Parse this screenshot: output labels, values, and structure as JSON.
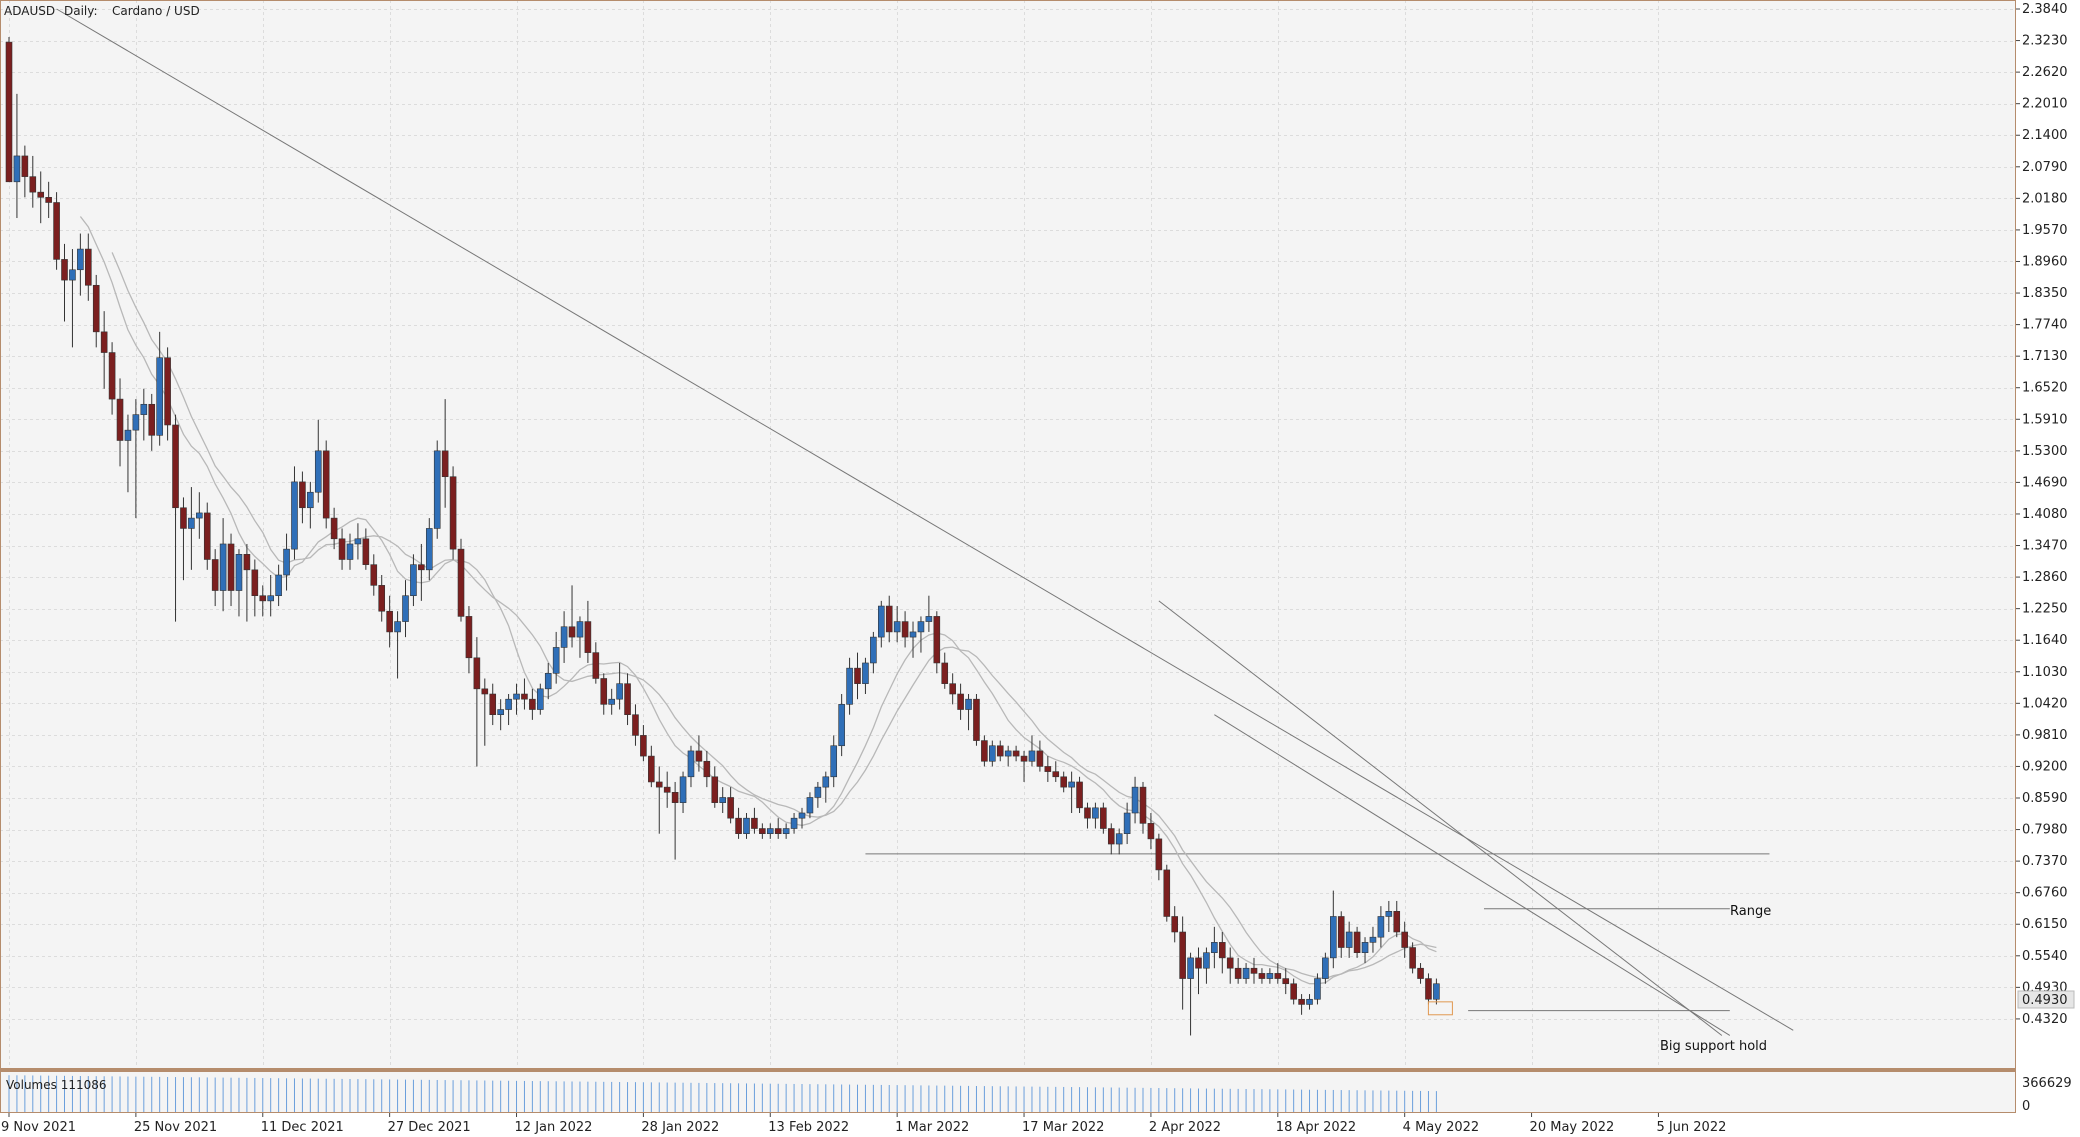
{
  "header": {
    "symbol": "ADAUSD",
    "timeframe": "Daily:",
    "description": "Cardano / USD"
  },
  "volume_panel": {
    "label": "Volumes 111086",
    "scale_top": "366629",
    "scale_bottom": "0"
  },
  "price_scale": {
    "labels": [
      "2.3840",
      "2.3230",
      "2.2620",
      "2.2010",
      "2.1400",
      "2.0790",
      "2.0180",
      "1.9570",
      "1.8960",
      "1.8350",
      "1.7740",
      "1.7130",
      "1.6520",
      "1.5910",
      "1.5300",
      "1.4690",
      "1.4080",
      "1.3470",
      "1.2860",
      "1.2250",
      "1.1640",
      "1.1030",
      "1.0420",
      "0.9810",
      "0.9200",
      "0.8590",
      "0.7980",
      "0.7370",
      "0.6760",
      "0.6150",
      "0.5540",
      "0.4930",
      "0.4320"
    ],
    "values": [
      2.384,
      2.323,
      2.262,
      2.201,
      2.14,
      2.079,
      2.018,
      1.957,
      1.896,
      1.835,
      1.774,
      1.713,
      1.652,
      1.591,
      1.53,
      1.469,
      1.408,
      1.347,
      1.286,
      1.225,
      1.164,
      1.103,
      1.042,
      0.981,
      0.92,
      0.859,
      0.798,
      0.737,
      0.676,
      0.615,
      0.554,
      0.493,
      0.432
    ],
    "current_price": "0.4930"
  },
  "time_axis": {
    "labels": [
      "9 Nov 2021",
      "25 Nov 2021",
      "11 Dec 2021",
      "27 Dec 2021",
      "12 Jan 2022",
      "28 Jan 2022",
      "13 Feb 2022",
      "1 Mar 2022",
      "17 Mar 2022",
      "2 Apr 2022",
      "18 Apr 2022",
      "4 May 2022",
      "20 May 2022",
      "5 Jun 2022"
    ]
  },
  "annotations": {
    "range_label": "Range",
    "support_label": "Big support hold"
  },
  "colors": {
    "bull": "#2f6fb8",
    "bear": "#7b1f1f",
    "ma": "#b8b8b8",
    "trendline": "#777777",
    "frame": "#b58c6c",
    "grid": "#dcdcdc",
    "volume": "#6b9fdc",
    "highlight": "#e09850"
  },
  "chart_data": {
    "type": "candlestick",
    "title": "ADAUSD, Daily: Cardano / USD",
    "ylim": [
      0.4,
      2.384
    ],
    "grid": true,
    "x_start": "9 Nov 2021",
    "x_step": "1 day",
    "ohlc": [
      [
        2.32,
        2.33,
        2.05,
        2.05
      ],
      [
        2.05,
        2.22,
        1.98,
        2.1
      ],
      [
        2.1,
        2.12,
        2.02,
        2.06
      ],
      [
        2.06,
        2.1,
        2.0,
        2.03
      ],
      [
        2.03,
        2.07,
        1.97,
        2.02
      ],
      [
        2.02,
        2.05,
        1.98,
        2.01
      ],
      [
        2.01,
        2.03,
        1.88,
        1.9
      ],
      [
        1.9,
        1.93,
        1.78,
        1.86
      ],
      [
        1.86,
        1.92,
        1.73,
        1.88
      ],
      [
        1.88,
        1.95,
        1.83,
        1.92
      ],
      [
        1.92,
        1.95,
        1.82,
        1.85
      ],
      [
        1.85,
        1.87,
        1.73,
        1.76
      ],
      [
        1.76,
        1.8,
        1.65,
        1.72
      ],
      [
        1.72,
        1.74,
        1.6,
        1.63
      ],
      [
        1.63,
        1.67,
        1.5,
        1.55
      ],
      [
        1.55,
        1.6,
        1.45,
        1.57
      ],
      [
        1.57,
        1.63,
        1.4,
        1.6
      ],
      [
        1.6,
        1.65,
        1.55,
        1.62
      ],
      [
        1.62,
        1.64,
        1.53,
        1.56
      ],
      [
        1.56,
        1.76,
        1.54,
        1.71
      ],
      [
        1.71,
        1.73,
        1.55,
        1.58
      ],
      [
        1.58,
        1.6,
        1.2,
        1.42
      ],
      [
        1.42,
        1.44,
        1.28,
        1.38
      ],
      [
        1.38,
        1.46,
        1.3,
        1.4
      ],
      [
        1.4,
        1.45,
        1.36,
        1.41
      ],
      [
        1.41,
        1.43,
        1.3,
        1.32
      ],
      [
        1.32,
        1.34,
        1.23,
        1.26
      ],
      [
        1.26,
        1.4,
        1.22,
        1.35
      ],
      [
        1.35,
        1.37,
        1.23,
        1.26
      ],
      [
        1.26,
        1.34,
        1.21,
        1.33
      ],
      [
        1.33,
        1.35,
        1.2,
        1.3
      ],
      [
        1.3,
        1.32,
        1.21,
        1.25
      ],
      [
        1.25,
        1.27,
        1.21,
        1.24
      ],
      [
        1.24,
        1.29,
        1.21,
        1.25
      ],
      [
        1.25,
        1.31,
        1.23,
        1.29
      ],
      [
        1.29,
        1.37,
        1.26,
        1.34
      ],
      [
        1.34,
        1.5,
        1.32,
        1.47
      ],
      [
        1.47,
        1.49,
        1.39,
        1.42
      ],
      [
        1.42,
        1.47,
        1.38,
        1.45
      ],
      [
        1.45,
        1.59,
        1.43,
        1.53
      ],
      [
        1.53,
        1.55,
        1.38,
        1.4
      ],
      [
        1.4,
        1.42,
        1.34,
        1.36
      ],
      [
        1.36,
        1.38,
        1.3,
        1.32
      ],
      [
        1.32,
        1.37,
        1.3,
        1.35
      ],
      [
        1.35,
        1.39,
        1.32,
        1.36
      ],
      [
        1.36,
        1.38,
        1.3,
        1.31
      ],
      [
        1.31,
        1.33,
        1.25,
        1.27
      ],
      [
        1.27,
        1.29,
        1.2,
        1.22
      ],
      [
        1.22,
        1.25,
        1.15,
        1.18
      ],
      [
        1.18,
        1.22,
        1.09,
        1.2
      ],
      [
        1.2,
        1.28,
        1.17,
        1.25
      ],
      [
        1.25,
        1.33,
        1.23,
        1.31
      ],
      [
        1.31,
        1.35,
        1.24,
        1.3
      ],
      [
        1.3,
        1.4,
        1.28,
        1.38
      ],
      [
        1.38,
        1.55,
        1.36,
        1.53
      ],
      [
        1.53,
        1.63,
        1.42,
        1.48
      ],
      [
        1.48,
        1.5,
        1.32,
        1.34
      ],
      [
        1.34,
        1.36,
        1.2,
        1.21
      ],
      [
        1.21,
        1.23,
        1.1,
        1.13
      ],
      [
        1.13,
        1.17,
        0.92,
        1.07
      ],
      [
        1.07,
        1.09,
        0.96,
        1.06
      ],
      [
        1.06,
        1.08,
        1.0,
        1.02
      ],
      [
        1.02,
        1.05,
        0.99,
        1.03
      ],
      [
        1.03,
        1.06,
        1.0,
        1.05
      ],
      [
        1.05,
        1.08,
        1.02,
        1.06
      ],
      [
        1.06,
        1.09,
        1.03,
        1.05
      ],
      [
        1.05,
        1.07,
        1.01,
        1.03
      ],
      [
        1.03,
        1.08,
        1.02,
        1.07
      ],
      [
        1.07,
        1.12,
        1.05,
        1.1
      ],
      [
        1.1,
        1.18,
        1.08,
        1.15
      ],
      [
        1.15,
        1.22,
        1.12,
        1.19
      ],
      [
        1.19,
        1.27,
        1.15,
        1.17
      ],
      [
        1.17,
        1.21,
        1.13,
        1.2
      ],
      [
        1.2,
        1.24,
        1.12,
        1.14
      ],
      [
        1.14,
        1.16,
        1.08,
        1.09
      ],
      [
        1.09,
        1.1,
        1.02,
        1.04
      ],
      [
        1.04,
        1.07,
        1.02,
        1.05
      ],
      [
        1.05,
        1.12,
        1.03,
        1.08
      ],
      [
        1.08,
        1.1,
        1.0,
        1.02
      ],
      [
        1.02,
        1.04,
        0.96,
        0.98
      ],
      [
        0.98,
        1.0,
        0.93,
        0.94
      ],
      [
        0.94,
        0.96,
        0.88,
        0.89
      ],
      [
        0.89,
        0.92,
        0.79,
        0.88
      ],
      [
        0.88,
        0.91,
        0.84,
        0.87
      ],
      [
        0.87,
        0.89,
        0.74,
        0.85
      ],
      [
        0.85,
        0.91,
        0.83,
        0.9
      ],
      [
        0.9,
        0.96,
        0.88,
        0.95
      ],
      [
        0.95,
        0.98,
        0.91,
        0.93
      ],
      [
        0.93,
        0.95,
        0.88,
        0.9
      ],
      [
        0.9,
        0.92,
        0.84,
        0.85
      ],
      [
        0.85,
        0.88,
        0.83,
        0.86
      ],
      [
        0.86,
        0.88,
        0.81,
        0.82
      ],
      [
        0.82,
        0.84,
        0.78,
        0.79
      ],
      [
        0.79,
        0.83,
        0.78,
        0.82
      ],
      [
        0.82,
        0.84,
        0.79,
        0.8
      ],
      [
        0.8,
        0.81,
        0.78,
        0.79
      ],
      [
        0.79,
        0.81,
        0.78,
        0.8
      ],
      [
        0.8,
        0.82,
        0.78,
        0.79
      ],
      [
        0.79,
        0.81,
        0.78,
        0.8
      ],
      [
        0.8,
        0.83,
        0.79,
        0.82
      ],
      [
        0.82,
        0.84,
        0.8,
        0.83
      ],
      [
        0.83,
        0.87,
        0.82,
        0.86
      ],
      [
        0.86,
        0.89,
        0.84,
        0.88
      ],
      [
        0.88,
        0.91,
        0.85,
        0.9
      ],
      [
        0.9,
        0.98,
        0.88,
        0.96
      ],
      [
        0.96,
        1.06,
        0.94,
        1.04
      ],
      [
        1.04,
        1.13,
        1.02,
        1.11
      ],
      [
        1.11,
        1.14,
        1.05,
        1.08
      ],
      [
        1.08,
        1.13,
        1.06,
        1.12
      ],
      [
        1.12,
        1.18,
        1.1,
        1.17
      ],
      [
        1.17,
        1.24,
        1.15,
        1.23
      ],
      [
        1.23,
        1.25,
        1.16,
        1.18
      ],
      [
        1.18,
        1.23,
        1.16,
        1.2
      ],
      [
        1.2,
        1.22,
        1.15,
        1.17
      ],
      [
        1.17,
        1.2,
        1.13,
        1.18
      ],
      [
        1.18,
        1.21,
        1.14,
        1.2
      ],
      [
        1.2,
        1.25,
        1.18,
        1.21
      ],
      [
        1.21,
        1.22,
        1.1,
        1.12
      ],
      [
        1.12,
        1.14,
        1.07,
        1.08
      ],
      [
        1.08,
        1.1,
        1.04,
        1.06
      ],
      [
        1.06,
        1.08,
        1.01,
        1.03
      ],
      [
        1.03,
        1.06,
        0.99,
        1.05
      ],
      [
        1.05,
        1.06,
        0.96,
        0.97
      ],
      [
        0.97,
        0.98,
        0.92,
        0.93
      ],
      [
        0.93,
        0.97,
        0.92,
        0.96
      ],
      [
        0.96,
        0.97,
        0.93,
        0.94
      ],
      [
        0.94,
        0.96,
        0.92,
        0.95
      ],
      [
        0.95,
        0.96,
        0.93,
        0.94
      ],
      [
        0.94,
        0.95,
        0.89,
        0.93
      ],
      [
        0.93,
        0.98,
        0.92,
        0.95
      ],
      [
        0.95,
        0.97,
        0.91,
        0.92
      ],
      [
        0.92,
        0.94,
        0.89,
        0.91
      ],
      [
        0.91,
        0.93,
        0.89,
        0.9
      ],
      [
        0.9,
        0.91,
        0.87,
        0.88
      ],
      [
        0.88,
        0.91,
        0.83,
        0.89
      ],
      [
        0.89,
        0.9,
        0.83,
        0.84
      ],
      [
        0.84,
        0.85,
        0.8,
        0.82
      ],
      [
        0.82,
        0.85,
        0.8,
        0.84
      ],
      [
        0.84,
        0.85,
        0.79,
        0.8
      ],
      [
        0.8,
        0.81,
        0.75,
        0.77
      ],
      [
        0.77,
        0.8,
        0.75,
        0.79
      ],
      [
        0.79,
        0.85,
        0.77,
        0.83
      ],
      [
        0.83,
        0.9,
        0.81,
        0.88
      ],
      [
        0.88,
        0.89,
        0.79,
        0.81
      ],
      [
        0.81,
        0.83,
        0.76,
        0.78
      ],
      [
        0.78,
        0.79,
        0.7,
        0.72
      ],
      [
        0.72,
        0.73,
        0.62,
        0.63
      ],
      [
        0.63,
        0.65,
        0.58,
        0.6
      ],
      [
        0.6,
        0.63,
        0.45,
        0.51
      ],
      [
        0.51,
        0.56,
        0.4,
        0.55
      ],
      [
        0.55,
        0.57,
        0.48,
        0.53
      ],
      [
        0.53,
        0.57,
        0.5,
        0.56
      ],
      [
        0.56,
        0.61,
        0.53,
        0.58
      ],
      [
        0.58,
        0.6,
        0.52,
        0.55
      ],
      [
        0.55,
        0.57,
        0.5,
        0.53
      ],
      [
        0.53,
        0.55,
        0.5,
        0.51
      ],
      [
        0.51,
        0.54,
        0.5,
        0.53
      ],
      [
        0.53,
        0.55,
        0.5,
        0.52
      ],
      [
        0.52,
        0.53,
        0.5,
        0.51
      ],
      [
        0.51,
        0.53,
        0.5,
        0.52
      ],
      [
        0.52,
        0.54,
        0.5,
        0.51
      ],
      [
        0.51,
        0.53,
        0.48,
        0.5
      ],
      [
        0.5,
        0.51,
        0.46,
        0.47
      ],
      [
        0.47,
        0.48,
        0.44,
        0.46
      ],
      [
        0.46,
        0.48,
        0.45,
        0.47
      ],
      [
        0.47,
        0.52,
        0.46,
        0.51
      ],
      [
        0.51,
        0.56,
        0.5,
        0.55
      ],
      [
        0.55,
        0.68,
        0.53,
        0.63
      ],
      [
        0.63,
        0.64,
        0.55,
        0.57
      ],
      [
        0.57,
        0.62,
        0.55,
        0.6
      ],
      [
        0.6,
        0.61,
        0.55,
        0.56
      ],
      [
        0.56,
        0.59,
        0.54,
        0.58
      ],
      [
        0.58,
        0.61,
        0.56,
        0.59
      ],
      [
        0.59,
        0.65,
        0.57,
        0.63
      ],
      [
        0.63,
        0.66,
        0.6,
        0.64
      ],
      [
        0.64,
        0.66,
        0.59,
        0.6
      ],
      [
        0.6,
        0.62,
        0.55,
        0.57
      ],
      [
        0.57,
        0.58,
        0.52,
        0.53
      ],
      [
        0.53,
        0.54,
        0.5,
        0.51
      ],
      [
        0.51,
        0.52,
        0.46,
        0.47
      ],
      [
        0.47,
        0.51,
        0.46,
        0.5
      ]
    ],
    "moving_averages": [
      {
        "period": 10
      },
      {
        "period": 14
      }
    ],
    "volume_scale": [
      0,
      366629
    ],
    "trendlines": [
      {
        "from": {
          "date": "15 Nov 2021",
          "price": 2.384
        },
        "to": {
          "date": "22 Jun 2022",
          "price": 0.41
        }
      },
      {
        "from": {
          "date": "3 Apr 2022",
          "price": 1.24
        },
        "to": {
          "date": "13 Jun 2022",
          "price": 0.4
        }
      },
      {
        "from": {
          "date": "10 Apr 2022",
          "price": 1.02
        },
        "to": {
          "date": "14 Jun 2022",
          "price": 0.4
        }
      }
    ],
    "horizontal_lines": [
      {
        "price": 0.751,
        "from": "25 Feb 2022",
        "to": "19 Jun 2022"
      },
      {
        "price": 0.645,
        "from": "14 May 2022",
        "to": "14 Jun 2022",
        "label": "Range"
      },
      {
        "price": 0.448,
        "from": "12 May 2022",
        "to": "14 Jun 2022",
        "label": "Big support hold"
      }
    ]
  }
}
